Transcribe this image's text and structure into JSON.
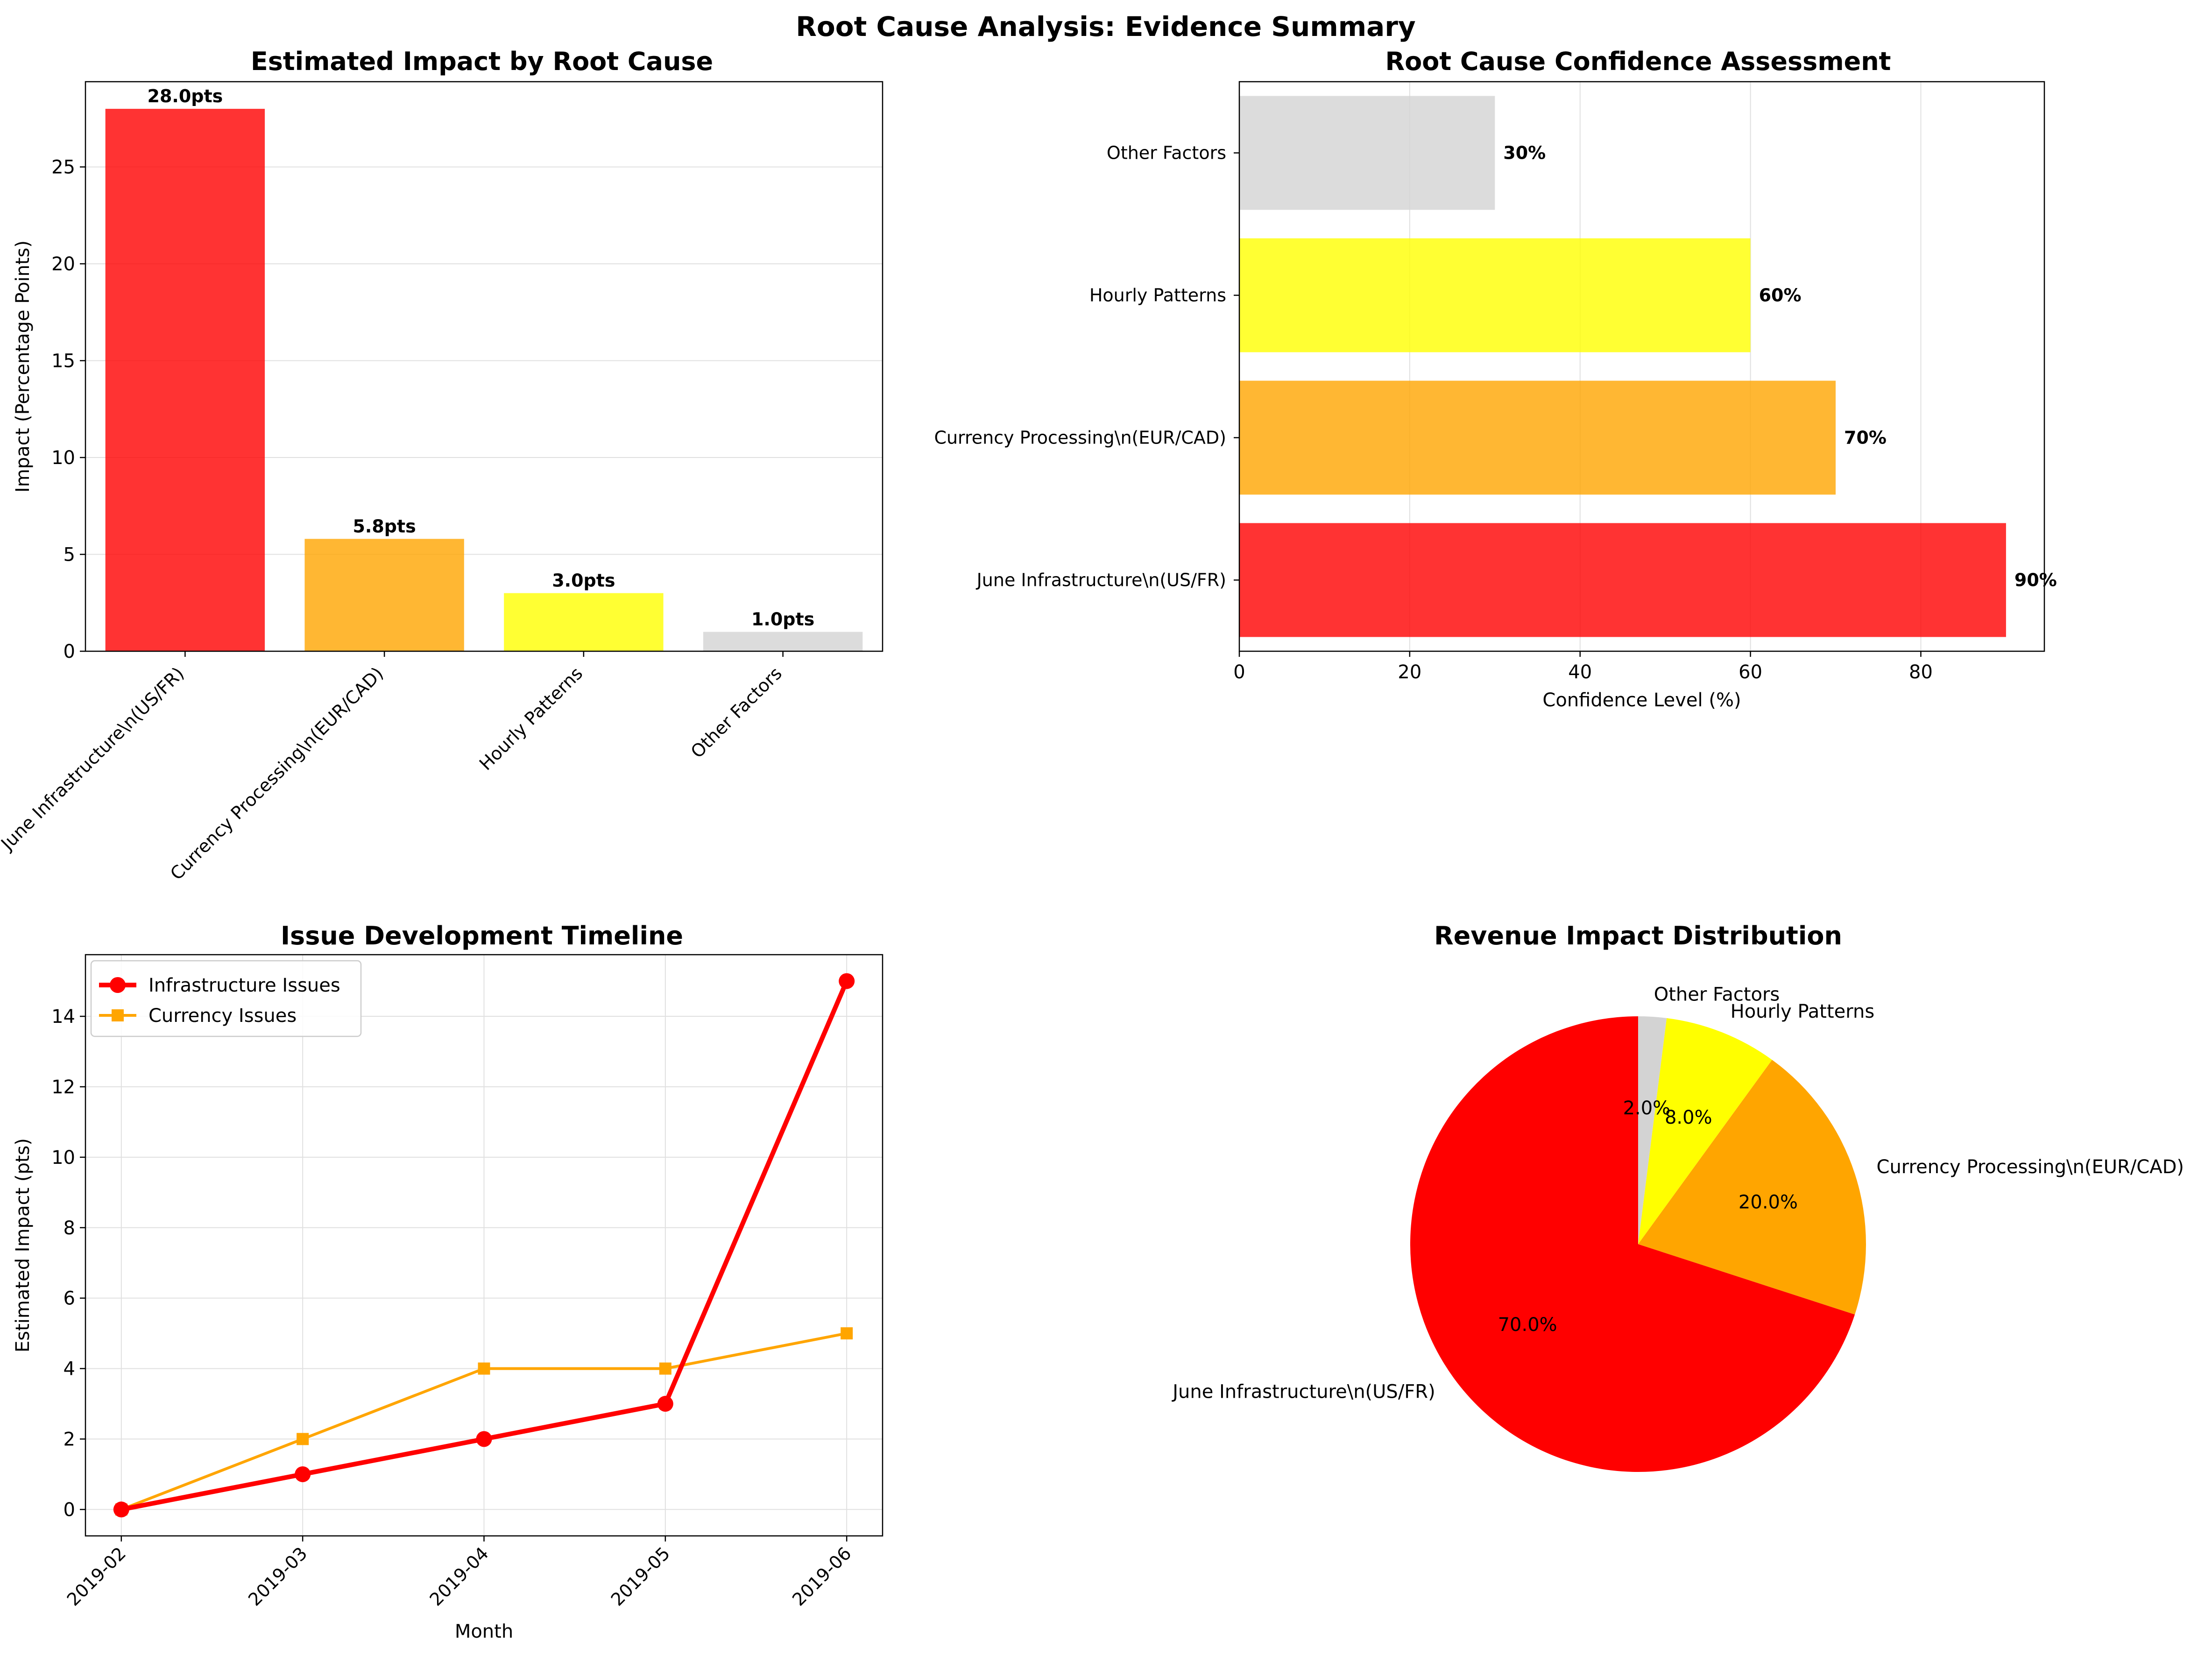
{
  "figure_title": "Root Cause Analysis: Evidence Summary",
  "colors": {
    "red": "#ff0000",
    "orange": "#ffa500",
    "yellow": "#ffff00",
    "lightgray": "#d3d3d3",
    "grid": "#e0e0e0"
  },
  "chart_data": [
    {
      "id": "impact",
      "type": "bar",
      "title": "Estimated Impact by Root Cause",
      "xlabel": "",
      "ylabel": "Impact (Percentage Points)",
      "categories": [
        "June Infrastructure\\n(US/FR)",
        "Currency Processing\\n(EUR/CAD)",
        "Hourly Patterns",
        "Other Factors"
      ],
      "values": [
        28.0,
        5.8,
        3.0,
        1.0
      ],
      "value_labels": [
        "28.0pts",
        "5.8pts",
        "3.0pts",
        "1.0pts"
      ],
      "colors": [
        "#ff0000",
        "#ffa500",
        "#ffff00",
        "#d3d3d3"
      ],
      "ylim": [
        0,
        29.4
      ],
      "yticks": [
        0,
        5,
        10,
        15,
        20,
        25
      ],
      "grid": "y"
    },
    {
      "id": "confidence",
      "type": "bar",
      "orientation": "horizontal",
      "title": "Root Cause Confidence Assessment",
      "xlabel": "Confidence Level (%)",
      "ylabel": "",
      "categories": [
        "June Infrastructure\\n(US/FR)",
        "Currency Processing\\n(EUR/CAD)",
        "Hourly Patterns",
        "Other Factors"
      ],
      "values": [
        90,
        70,
        60,
        30
      ],
      "value_labels": [
        "90%",
        "70%",
        "60%",
        "30%"
      ],
      "colors": [
        "#ff0000",
        "#ffa500",
        "#ffff00",
        "#d3d3d3"
      ],
      "xlim": [
        0,
        94.5
      ],
      "xticks": [
        0,
        20,
        40,
        60,
        80
      ],
      "grid": "x"
    },
    {
      "id": "timeline",
      "type": "line",
      "title": "Issue Development Timeline",
      "xlabel": "Month",
      "ylabel": "Estimated Impact (pts)",
      "x": [
        "2019-02",
        "2019-03",
        "2019-04",
        "2019-05",
        "2019-06"
      ],
      "series": [
        {
          "name": "Infrastructure Issues",
          "values": [
            0,
            1,
            2,
            3,
            15
          ],
          "color": "#ff0000",
          "marker": "circle"
        },
        {
          "name": "Currency Issues",
          "values": [
            0,
            2,
            4,
            4,
            5
          ],
          "color": "#ffa500",
          "marker": "square"
        }
      ],
      "ylim": [
        -0.75,
        15.75
      ],
      "yticks": [
        0,
        2,
        4,
        6,
        8,
        10,
        12,
        14
      ],
      "legend": "top-left",
      "grid": "both"
    },
    {
      "id": "revenue",
      "type": "pie",
      "title": "Revenue Impact Distribution",
      "labels": [
        "June Infrastructure\\n(US/FR)",
        "Currency Processing\\n(EUR/CAD)",
        "Hourly Patterns",
        "Other Factors"
      ],
      "values": [
        70.0,
        20.0,
        8.0,
        2.0
      ],
      "pct_labels": [
        "70.0%",
        "20.0%",
        "8.0%",
        "2.0%"
      ],
      "colors": [
        "#ff0000",
        "#ffa500",
        "#ffff00",
        "#d3d3d3"
      ],
      "start_angle": 90,
      "direction": "counterclockwise"
    }
  ]
}
